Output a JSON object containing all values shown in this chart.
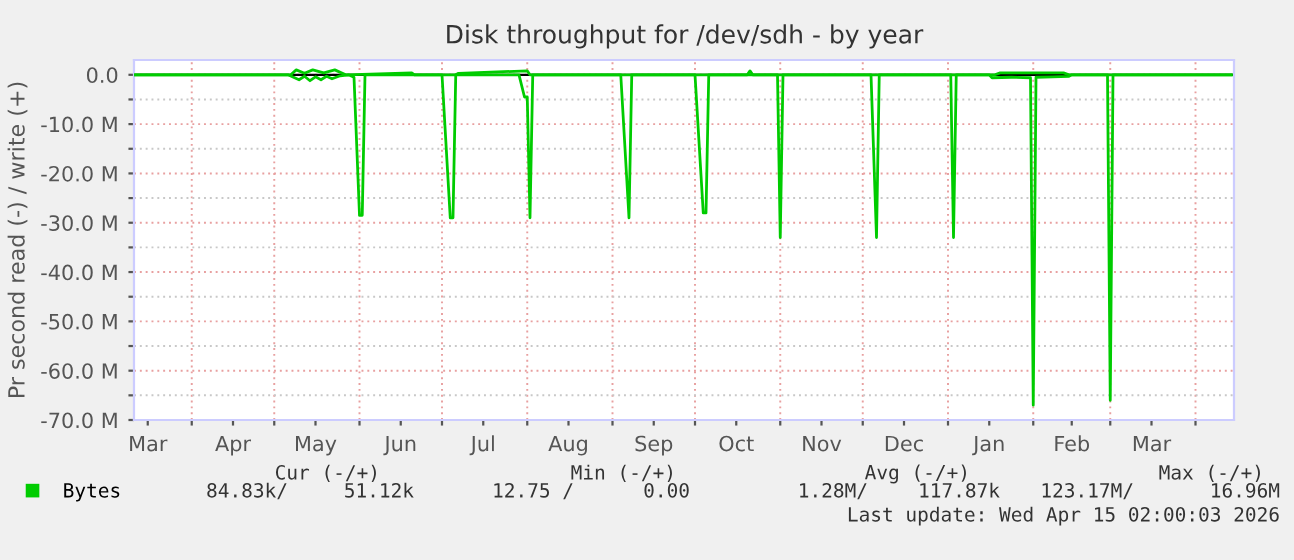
{
  "chart_data": {
    "type": "line",
    "title": "Disk throughput for /dev/sdh - by year",
    "ylabel": "Pr second read (-) / write (+)",
    "xlim": [
      "2025-03-11",
      "2026-04-15"
    ],
    "ylim": [
      -70,
      3
    ],
    "xticks": [
      {
        "value": "2025-03-16",
        "label": "Mar"
      },
      {
        "value": "2025-04-01",
        "label": null
      },
      {
        "value": "2025-04-16",
        "label": "Apr"
      },
      {
        "value": "2025-05-01",
        "label": null
      },
      {
        "value": "2025-05-16",
        "label": "May"
      },
      {
        "value": "2025-06-01",
        "label": null
      },
      {
        "value": "2025-06-16",
        "label": "Jun"
      },
      {
        "value": "2025-07-01",
        "label": null
      },
      {
        "value": "2025-07-16",
        "label": "Jul"
      },
      {
        "value": "2025-08-01",
        "label": null
      },
      {
        "value": "2025-08-16",
        "label": "Aug"
      },
      {
        "value": "2025-09-01",
        "label": null
      },
      {
        "value": "2025-09-16",
        "label": "Sep"
      },
      {
        "value": "2025-10-01",
        "label": null
      },
      {
        "value": "2025-10-16",
        "label": "Oct"
      },
      {
        "value": "2025-11-01",
        "label": null
      },
      {
        "value": "2025-11-16",
        "label": "Nov"
      },
      {
        "value": "2025-12-01",
        "label": null
      },
      {
        "value": "2025-12-16",
        "label": "Dec"
      },
      {
        "value": "2026-01-01",
        "label": null
      },
      {
        "value": "2026-01-16",
        "label": "Jan"
      },
      {
        "value": "2026-02-01",
        "label": null
      },
      {
        "value": "2026-02-15",
        "label": "Feb"
      },
      {
        "value": "2026-03-01",
        "label": null
      },
      {
        "value": "2026-03-16",
        "label": "Mar"
      },
      {
        "value": "2026-04-01",
        "label": null
      }
    ],
    "yticks": [
      {
        "value": 0,
        "label": "0.0"
      },
      {
        "value": -5,
        "label": null
      },
      {
        "value": -10,
        "label": "-10.0 M"
      },
      {
        "value": -15,
        "label": null
      },
      {
        "value": -20,
        "label": "-20.0 M"
      },
      {
        "value": -25,
        "label": null
      },
      {
        "value": -30,
        "label": "-30.0 M"
      },
      {
        "value": -35,
        "label": null
      },
      {
        "value": -40,
        "label": "-40.0 M"
      },
      {
        "value": -45,
        "label": null
      },
      {
        "value": -50,
        "label": "-50.0 M"
      },
      {
        "value": -55,
        "label": null
      },
      {
        "value": -60,
        "label": "-60.0 M"
      },
      {
        "value": -65,
        "label": null
      },
      {
        "value": -70,
        "label": "-70.0 M"
      }
    ],
    "grid": true,
    "legend": "bottom left",
    "marker": "none",
    "line_style": "solid",
    "ref_lines": [
      {
        "axis": "y",
        "value": 0,
        "label": null,
        "color": "#000000"
      }
    ],
    "series": [
      {
        "name": "Bytes",
        "color": "#00cc00",
        "x": [
          "2025-03-11",
          "2025-05-06",
          "2025-05-08",
          "2025-05-10",
          "2025-05-12",
          "2025-05-14",
          "2025-05-16",
          "2025-05-18",
          "2025-05-20",
          "2025-05-22",
          "2025-05-25",
          "2025-05-28",
          "2025-05-30",
          "2025-06-01",
          "2025-06-02",
          "2025-06-03",
          "2025-07-01",
          "2025-07-04",
          "2025-07-05",
          "2025-07-06",
          "2025-07-29",
          "2025-07-31",
          "2025-08-01",
          "2025-08-02",
          "2025-08-03",
          "2025-09-04",
          "2025-09-07",
          "2025-09-08",
          "2025-10-01",
          "2025-10-04",
          "2025-10-05",
          "2025-10-06",
          "2025-10-31",
          "2025-11-01",
          "2025-11-02",
          "2025-12-04",
          "2025-12-06",
          "2025-12-07",
          "2026-01-02",
          "2026-01-03",
          "2026-01-04",
          "2026-01-16",
          "2026-01-17",
          "2026-01-24",
          "2026-01-31",
          "2026-02-01",
          "2026-02-02",
          "2026-02-08",
          "2026-02-14",
          "2026-02-15",
          "2026-02-28",
          "2026-03-01",
          "2026-03-02",
          "2026-04-14"
        ],
        "values": [
          0,
          0,
          -0.5,
          -1,
          -0.3,
          -1.2,
          -0.4,
          -1,
          -0.3,
          -0.8,
          -0.2,
          0,
          -0.5,
          -28.5,
          -28.5,
          0,
          0,
          -29,
          -29,
          0,
          0,
          -4.5,
          -4.5,
          -29,
          0,
          0,
          -29,
          0,
          0,
          -28,
          -28,
          0,
          0,
          -33,
          0,
          0,
          -33,
          0,
          0,
          -33,
          0,
          0,
          -0.6,
          -0.5,
          -0.6,
          -67,
          -0.5,
          -0.4,
          -0.3,
          0,
          0,
          -66,
          0,
          0
        ]
      },
      {
        "color": "#00cc00",
        "x": [
          "2025-03-11",
          "2025-05-07",
          "2025-05-09",
          "2025-05-12",
          "2025-05-15",
          "2025-05-19",
          "2025-05-23",
          "2025-05-27",
          "2025-06-20",
          "2025-06-21",
          "2025-07-06",
          "2025-07-07",
          "2025-08-01",
          "2025-08-02",
          "2025-10-20",
          "2025-10-21",
          "2025-10-22",
          "2026-01-18",
          "2026-01-20",
          "2026-02-12",
          "2026-02-14",
          "2026-04-14"
        ],
        "values": [
          0,
          0,
          1,
          0.3,
          1,
          0.4,
          1,
          0,
          0.4,
          0,
          0,
          0.3,
          0.8,
          0,
          0,
          0.8,
          0,
          0,
          0.4,
          0.4,
          0,
          0
        ]
      }
    ],
    "annotations": [
      "Cur (-/+)",
      "Min (-/+)",
      "Avg (-/+)",
      "Max (-/+)",
      "84.83k/",
      "51.12k",
      "12.75 /",
      "0.00",
      "1.28M/",
      "117.87k",
      "123.17M/",
      "16.96M",
      "Last update: Wed Apr 15 02:00:03 2026"
    ]
  }
}
